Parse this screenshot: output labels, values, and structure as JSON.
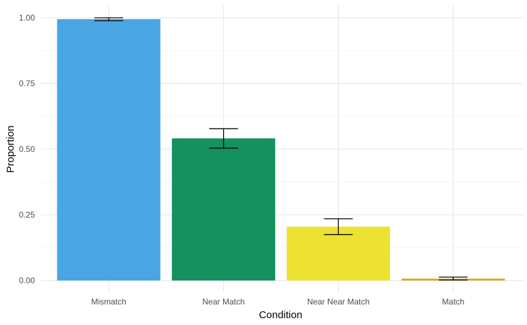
{
  "chart_data": {
    "type": "bar",
    "title": "",
    "xlabel": "Condition",
    "ylabel": "Proportion",
    "categories": [
      "Mismatch",
      "Near Match",
      "Near Near Match",
      "Match"
    ],
    "values": [
      0.995,
      0.541,
      0.205,
      0.007
    ],
    "error_low": [
      0.989,
      0.504,
      0.175,
      0.002
    ],
    "error_high": [
      1.0,
      0.578,
      0.235,
      0.013
    ],
    "colors": [
      "#4AA5E3",
      "#159160",
      "#EDE232",
      "#E69F14"
    ],
    "ylim": [
      0,
      1.0
    ],
    "yticks": [
      0.0,
      0.25,
      0.5,
      0.75,
      1.0
    ],
    "ytick_labels": [
      "0.00",
      "0.25",
      "0.50",
      "0.75",
      "1.00"
    ],
    "grid": true,
    "legend": "none"
  }
}
